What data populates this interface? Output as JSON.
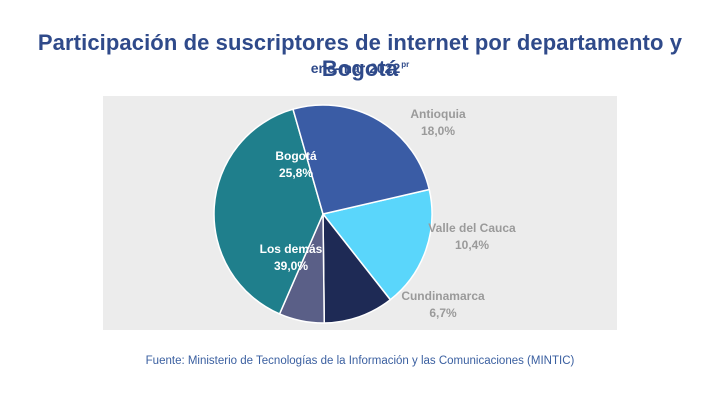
{
  "header": {
    "title": "Participación de suscriptores de internet por departamento y Bogotá",
    "subtitle": "ene-mar 2022",
    "subtitle_sup": "pr"
  },
  "footer": {
    "source": "Fuente: Ministerio de Tecnologías de la Información y las Comunicaciones (MINTIC)"
  },
  "chart_data": {
    "type": "pie",
    "title": "Participación de suscriptores de internet por departamento y Bogotá",
    "subtitle": "ene-mar 2022pr",
    "slices": [
      {
        "name": "Antioquia",
        "label": "18,0%",
        "value": 18.0,
        "color": "#5ad6fb"
      },
      {
        "name": "Valle del Cauca",
        "label": "10,4%",
        "value": 10.4,
        "color": "#1e2a55"
      },
      {
        "name": "Cundinamarca",
        "label": "6,7%",
        "value": 6.7,
        "color": "#5a5f87"
      },
      {
        "name": "Los demás",
        "label": "39,0%",
        "value": 39.0,
        "color": "#1f7f8c"
      },
      {
        "name": "Bogotá",
        "label": "25,8%",
        "value": 25.8,
        "color": "#3a5ca5"
      }
    ],
    "label_color_outside": "#9a9a9a",
    "label_color_inside": "#ffffff"
  }
}
